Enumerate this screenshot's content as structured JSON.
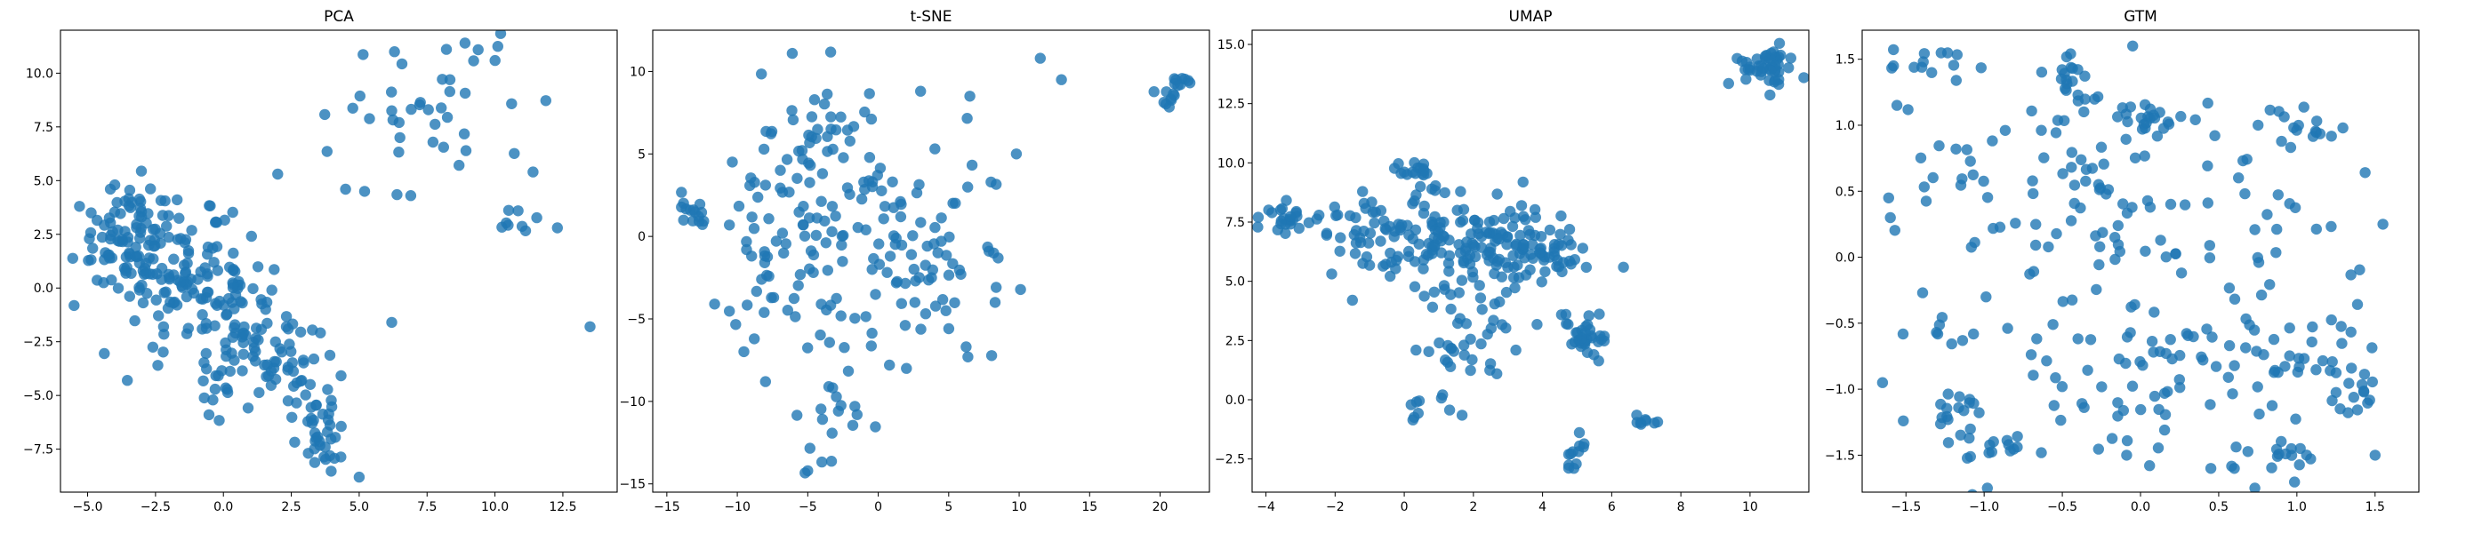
{
  "colors": {
    "point": "#1f77b4"
  },
  "chart_data": [
    {
      "type": "scatter",
      "title": "PCA",
      "xlabel": "",
      "ylabel": "",
      "xlim": [
        -6.0,
        14.5
      ],
      "ylim": [
        -9.5,
        12.0
      ],
      "xticks": [
        -5.0,
        -2.5,
        0.0,
        2.5,
        5.0,
        7.5,
        10.0,
        12.5
      ],
      "xtick_labels": [
        "−5.0",
        "−2.5",
        "0.0",
        "2.5",
        "5.0",
        "7.5",
        "10.0",
        "12.5"
      ],
      "yticks": [
        -7.5,
        -5.0,
        -2.5,
        0.0,
        2.5,
        5.0,
        7.5,
        10.0
      ],
      "ytick_labels": [
        "−7.5",
        "−5.0",
        "−2.5",
        "0.0",
        "2.5",
        "5.0",
        "7.5",
        "10.0"
      ],
      "clusters": [
        {
          "cx": -3.5,
          "cy": 2.5,
          "sx": 1.0,
          "sy": 1.2,
          "n": 90
        },
        {
          "cx": -1.0,
          "cy": 0.0,
          "sx": 1.3,
          "sy": 1.5,
          "n": 130
        },
        {
          "cx": 1.5,
          "cy": -3.5,
          "sx": 1.3,
          "sy": 1.3,
          "n": 80
        },
        {
          "cx": 3.8,
          "cy": -6.5,
          "sx": 0.8,
          "sy": 1.0,
          "n": 35
        },
        {
          "cx": 8.0,
          "cy": 8.5,
          "sx": 1.8,
          "sy": 1.6,
          "n": 40
        },
        {
          "cx": 10.5,
          "cy": 3.0,
          "sx": 0.8,
          "sy": 0.6,
          "n": 8
        }
      ],
      "points": [
        [
          -5.3,
          3.8
        ],
        [
          13.5,
          -1.8
        ],
        [
          12.3,
          2.8
        ],
        [
          5.2,
          4.5
        ],
        [
          6.2,
          -1.6
        ],
        [
          4.5,
          4.6
        ],
        [
          6.5,
          7.0
        ],
        [
          6.9,
          4.3
        ],
        [
          6.3,
          11.0
        ],
        [
          5.0,
          -8.8
        ],
        [
          -4.0,
          4.8
        ],
        [
          2.0,
          5.3
        ]
      ]
    },
    {
      "type": "scatter",
      "title": "t-SNE",
      "xlabel": "",
      "ylabel": "",
      "xlim": [
        -16.0,
        23.5
      ],
      "ylim": [
        -15.5,
        12.5
      ],
      "xticks": [
        -15,
        -10,
        -5,
        0,
        5,
        10,
        15,
        20
      ],
      "xtick_labels": [
        "−15",
        "−10",
        "−5",
        "0",
        "5",
        "10",
        "15",
        "20"
      ],
      "yticks": [
        -15,
        -10,
        -5,
        0,
        5,
        10
      ],
      "ytick_labels": [
        "−15",
        "−10",
        "−5",
        "0",
        "5",
        "10"
      ],
      "clusters": [
        {
          "cx": -13.0,
          "cy": 1.5,
          "sx": 0.8,
          "sy": 0.6,
          "n": 15
        },
        {
          "cx": 21.0,
          "cy": 9.0,
          "sx": 0.6,
          "sy": 0.9,
          "n": 18
        },
        {
          "cx": -5.0,
          "cy": 4.5,
          "sx": 2.5,
          "sy": 2.5,
          "n": 45
        },
        {
          "cx": 0.0,
          "cy": 0.5,
          "sx": 3.5,
          "sy": 4.0,
          "n": 80
        },
        {
          "cx": -7.0,
          "cy": -2.0,
          "sx": 2.0,
          "sy": 3.0,
          "n": 40
        },
        {
          "cx": 4.0,
          "cy": -2.0,
          "sx": 2.5,
          "sy": 2.5,
          "n": 40
        },
        {
          "cx": -3.0,
          "cy": -10.5,
          "sx": 1.5,
          "sy": 2.0,
          "n": 20
        }
      ],
      "points": [
        [
          -5.0,
          -14.2
        ],
        [
          -8.0,
          -8.8
        ],
        [
          11.5,
          10.8
        ],
        [
          13.0,
          9.5
        ],
        [
          9.8,
          5.0
        ],
        [
          6.5,
          8.5
        ],
        [
          8.0,
          3.3
        ],
        [
          0.8,
          -7.8
        ],
        [
          2.0,
          -8.0
        ],
        [
          -1.5,
          -10.8
        ]
      ]
    },
    {
      "type": "scatter",
      "title": "UMAP",
      "xlabel": "",
      "ylabel": "",
      "xlim": [
        -4.4,
        11.7
      ],
      "ylim": [
        -3.9,
        15.6
      ],
      "xticks": [
        -4,
        -2,
        0,
        2,
        4,
        6,
        8,
        10
      ],
      "xtick_labels": [
        "−4",
        "−2",
        "0",
        "2",
        "4",
        "6",
        "8",
        "10"
      ],
      "yticks": [
        -2.5,
        0.0,
        2.5,
        5.0,
        7.5,
        10.0,
        12.5,
        15.0
      ],
      "ytick_labels": [
        "−2.5",
        "0.0",
        "2.5",
        "5.0",
        "7.5",
        "10.0",
        "12.5",
        "15.0"
      ],
      "clusters": [
        {
          "cx": 10.4,
          "cy": 14.0,
          "sx": 0.4,
          "sy": 0.4,
          "n": 45
        },
        {
          "cx": -3.5,
          "cy": 7.6,
          "sx": 0.4,
          "sy": 0.3,
          "n": 25
        },
        {
          "cx": 0.0,
          "cy": 7.0,
          "sx": 1.2,
          "sy": 1.0,
          "n": 100
        },
        {
          "cx": 2.5,
          "cy": 6.0,
          "sx": 1.3,
          "sy": 1.3,
          "n": 110
        },
        {
          "cx": 0.3,
          "cy": 9.6,
          "sx": 0.4,
          "sy": 0.3,
          "n": 15
        },
        {
          "cx": 4.0,
          "cy": 6.2,
          "sx": 0.6,
          "sy": 0.5,
          "n": 30
        },
        {
          "cx": 5.2,
          "cy": 2.8,
          "sx": 0.4,
          "sy": 0.6,
          "n": 35
        },
        {
          "cx": 1.5,
          "cy": 2.0,
          "sx": 0.8,
          "sy": 1.2,
          "n": 30
        },
        {
          "cx": 5.0,
          "cy": -2.5,
          "sx": 0.15,
          "sy": 0.5,
          "n": 12
        },
        {
          "cx": 7.0,
          "cy": -0.9,
          "sx": 0.2,
          "sy": 0.15,
          "n": 8
        },
        {
          "cx": 0.3,
          "cy": -0.4,
          "sx": 0.2,
          "sy": 0.2,
          "n": 6
        }
      ],
      "points": [
        [
          -1.5,
          4.2
        ],
        [
          3.5,
          7.6
        ],
        [
          3.8,
          7.7
        ]
      ]
    },
    {
      "type": "scatter",
      "title": "GTM",
      "xlabel": "",
      "ylabel": "",
      "xlim": [
        -1.78,
        1.78
      ],
      "ylim": [
        -1.78,
        1.72
      ],
      "xticks": [
        -1.5,
        -1.0,
        -0.5,
        0.0,
        0.5,
        1.0,
        1.5
      ],
      "xtick_labels": [
        "−1.5",
        "−1.0",
        "−0.5",
        "0.0",
        "0.5",
        "1.0",
        "1.5"
      ],
      "yticks": [
        -1.5,
        -1.0,
        -0.5,
        0.0,
        0.5,
        1.0,
        1.5
      ],
      "ytick_labels": [
        "−1.5",
        "−1.0",
        "−0.5",
        "0.0",
        "0.5",
        "1.0",
        "1.5"
      ],
      "clusters": [
        {
          "cx": -1.35,
          "cy": 1.48,
          "sx": 0.15,
          "sy": 0.05,
          "n": 12
        },
        {
          "cx": -0.45,
          "cy": 1.35,
          "sx": 0.08,
          "sy": 0.08,
          "n": 15
        },
        {
          "cx": 0.0,
          "cy": 1.05,
          "sx": 0.1,
          "sy": 0.06,
          "n": 18
        },
        {
          "cx": 1.05,
          "cy": 0.95,
          "sx": 0.12,
          "sy": 0.1,
          "n": 15
        },
        {
          "cx": -1.2,
          "cy": -1.15,
          "sx": 0.12,
          "sy": 0.08,
          "n": 14
        },
        {
          "cx": -0.85,
          "cy": -1.45,
          "sx": 0.12,
          "sy": 0.06,
          "n": 14
        },
        {
          "cx": 0.95,
          "cy": -1.5,
          "sx": 0.12,
          "sy": 0.08,
          "n": 15
        },
        {
          "cx": 1.35,
          "cy": -1.05,
          "sx": 0.1,
          "sy": 0.1,
          "n": 14
        },
        {
          "cx": 1.1,
          "cy": -0.7,
          "sx": 0.2,
          "sy": 0.2,
          "n": 20
        },
        {
          "cx": -1.3,
          "cy": -0.58,
          "sx": 0.08,
          "sy": 0.05,
          "n": 8
        },
        {
          "cx": -0.65,
          "cy": 0.75,
          "sx": 0.6,
          "sy": 0.4,
          "n": 60
        },
        {
          "cx": 0.5,
          "cy": 0.2,
          "sx": 0.6,
          "sy": 0.6,
          "n": 70
        },
        {
          "cx": -0.4,
          "cy": -0.9,
          "sx": 0.6,
          "sy": 0.5,
          "n": 50
        },
        {
          "cx": 0.3,
          "cy": -0.7,
          "sx": 0.5,
          "sy": 0.5,
          "n": 40
        }
      ],
      "points": [
        [
          -1.65,
          -0.95
        ],
        [
          -1.6,
          0.3
        ],
        [
          -1.58,
          1.45
        ],
        [
          -0.05,
          1.6
        ],
        [
          0.6,
          -1.6
        ],
        [
          0.45,
          -1.6
        ],
        [
          1.5,
          -1.5
        ],
        [
          1.55,
          0.25
        ]
      ]
    }
  ]
}
